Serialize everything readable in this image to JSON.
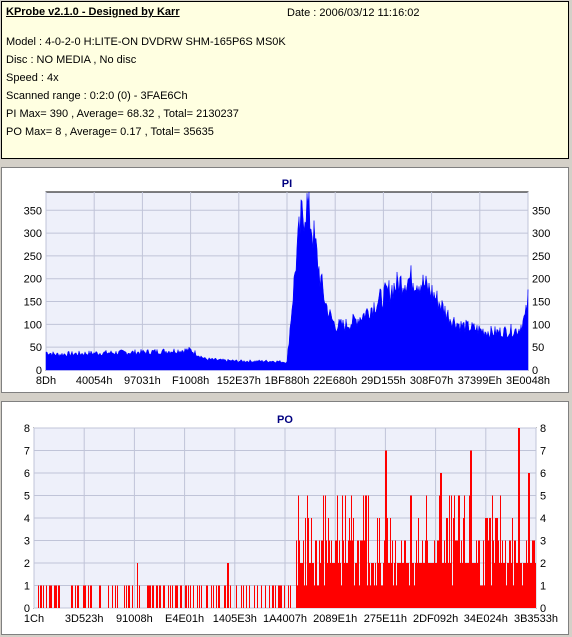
{
  "info": {
    "title": "KProbe v2.1.0 - Designed by Karr",
    "date": "Date : 2006/03/12 11:16:02",
    "lines": [
      "Model : 4-0-2-0 H:LITE-ON DVDRW SHM-165P6S MS0K",
      "Disc : NO MEDIA , No disc",
      "Speed : 4x",
      "Scanned range : 0:2:0 (0) - 3FAE6Ch",
      "PI Max= 390 , Average= 68.32 , Total= 2130237",
      "PO Max= 8 , Average= 0.17 , Total= 35635"
    ]
  },
  "colors": {
    "pi": "#0000ff",
    "po": "#ff0000",
    "plot_bg": "#eef0fa",
    "grid": "#c0c4d8",
    "title": "#000080"
  },
  "chart_data": [
    {
      "type": "area",
      "title": "PI",
      "ylim": [
        0,
        390
      ],
      "yticks": [
        0,
        50,
        100,
        150,
        200,
        250,
        300,
        350
      ],
      "xticks": [
        "8Dh",
        "40054h",
        "97031h",
        "F1008h",
        "152E37h",
        "1BF880h",
        "22E680h",
        "29D155h",
        "308F07h",
        "37399Eh",
        "3E0048h"
      ],
      "grid": true,
      "series": [
        {
          "x": [
            0,
            0.02,
            0.1,
            0.2,
            0.3,
            0.33,
            0.36,
            0.4,
            0.47,
            0.5,
            0.52,
            0.53,
            0.54,
            0.55,
            0.56,
            0.57,
            0.58,
            0.59,
            0.6,
            0.62,
            0.64,
            0.66,
            0.68,
            0.7,
            0.72,
            0.74,
            0.76,
            0.78,
            0.8,
            0.82,
            0.84,
            0.86,
            0.88,
            0.9,
            0.92,
            0.94,
            0.96,
            0.98,
            0.995,
            1.0
          ],
          "y": [
            40,
            35,
            38,
            40,
            45,
            25,
            22,
            20,
            20,
            18,
            260,
            340,
            375,
            330,
            270,
            200,
            150,
            120,
            100,
            100,
            110,
            125,
            145,
            165,
            185,
            200,
            205,
            195,
            175,
            145,
            115,
            100,
            95,
            90,
            85,
            85,
            88,
            90,
            120,
            160
          ]
        }
      ]
    },
    {
      "type": "bar",
      "title": "PO",
      "ylim": [
        0,
        8
      ],
      "yticks": [
        0,
        1,
        2,
        3,
        4,
        5,
        6,
        7,
        8
      ],
      "xticks": [
        "1Ch",
        "3D523h",
        "91008h",
        "E4E01h",
        "1405E3h",
        "1A4007h",
        "2089E1h",
        "275E11h",
        "2DF092h",
        "34E024h",
        "3B3533h"
      ],
      "grid": true,
      "peaks": [
        [
          0.205,
          2
        ],
        [
          0.385,
          2
        ],
        [
          0.58,
          5
        ],
        [
          0.62,
          5
        ],
        [
          0.66,
          5
        ],
        [
          0.7,
          7
        ],
        [
          0.75,
          5
        ],
        [
          0.81,
          6
        ],
        [
          0.87,
          7
        ],
        [
          0.92,
          4
        ],
        [
          0.965,
          8
        ],
        [
          0.985,
          6
        ]
      ]
    }
  ]
}
